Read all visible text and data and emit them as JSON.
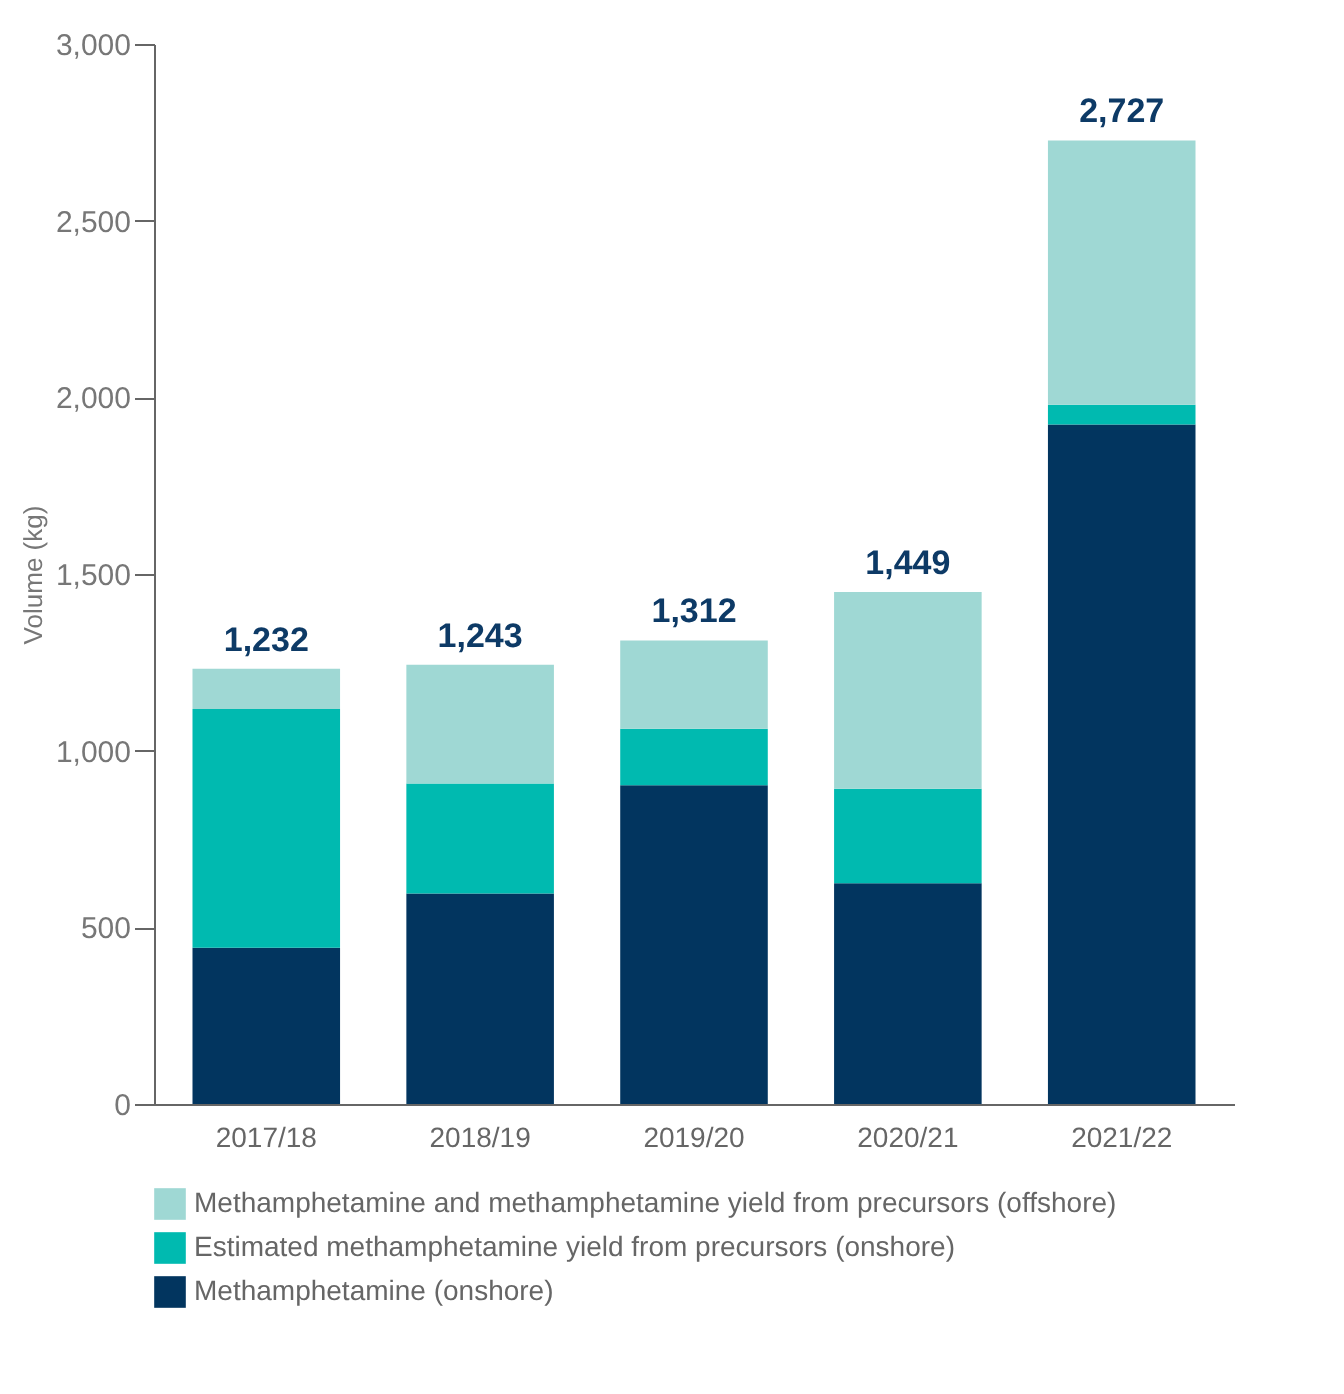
{
  "chart_data": {
    "type": "bar",
    "stacked": true,
    "ylabel": "Volume (kg)",
    "categories": [
      "2017/18",
      "2018/19",
      "2019/20",
      "2020/21",
      "2021/22"
    ],
    "series": [
      {
        "name": "Methamphetamine (onshore)",
        "color": "#02355f",
        "values": [
          442,
          596,
          902,
          625,
          1923
        ]
      },
      {
        "name": "Estimated methamphetamine yield from precursors (onshore)",
        "color": "#00bab0",
        "values": [
          676,
          311,
          160,
          267,
          56
        ]
      },
      {
        "name": "Methamphetamine and methamphetamine yield from precursors (offshore)",
        "color": "#9fd8d4",
        "values": [
          114,
          336,
          250,
          557,
          748
        ]
      }
    ],
    "totals": [
      "1,232",
      "1,243",
      "1,312",
      "1,449",
      "2,727"
    ],
    "ylim": [
      0,
      3000
    ],
    "yticks": [
      {
        "value": 0,
        "label": "0"
      },
      {
        "value": 500,
        "label": "500"
      },
      {
        "value": 1000,
        "label": "1,000"
      },
      {
        "value": 1500,
        "label": "1,500"
      },
      {
        "value": 2000,
        "label": "2,000"
      },
      {
        "value": 2500,
        "label": "2,500"
      },
      {
        "value": 3000,
        "label": "3,000"
      }
    ],
    "grid": false,
    "legend": "bottom"
  }
}
